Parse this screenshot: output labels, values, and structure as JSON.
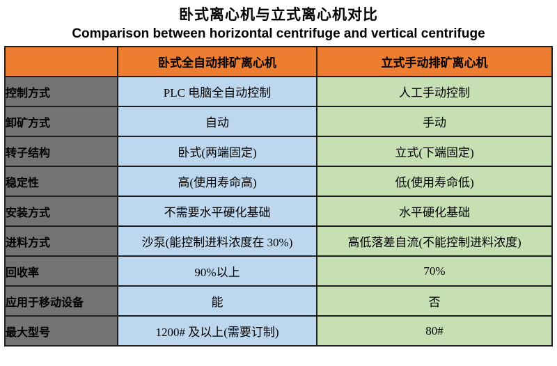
{
  "title": "卧式离心机与立式离心机对比",
  "subtitle": "Comparison between horizontal centrifuge and vertical centrifuge",
  "colors": {
    "header_bg": "#ED7D31",
    "label_column_bg": "#737373",
    "horizontal_column_bg": "#BDD7EE",
    "vertical_column_bg": "#C6E0B4",
    "border": "#1E1E1E"
  },
  "table": {
    "columns": {
      "corner": "",
      "horizontal": "卧式全自动排矿离心机",
      "vertical": "立式手动排矿离心机"
    },
    "rows": [
      {
        "label": "控制方式",
        "horizontal": "PLC 电脑全自动控制",
        "vertical": "人工手动控制"
      },
      {
        "label": "卸矿方式",
        "horizontal": "自动",
        "vertical": "手动"
      },
      {
        "label": "转子结构",
        "horizontal": "卧式(两端固定)",
        "vertical": "立式(下端固定)"
      },
      {
        "label": "稳定性",
        "horizontal": "高(使用寿命高)",
        "vertical": "低(使用寿命低)"
      },
      {
        "label": "安装方式",
        "horizontal": "不需要水平硬化基础",
        "vertical": "水平硬化基础"
      },
      {
        "label": "进料方式",
        "horizontal": "沙泵(能控制进料浓度在 30%)",
        "vertical": "高低落差自流(不能控制进料浓度)"
      },
      {
        "label": "回收率",
        "horizontal": "90%以上",
        "vertical": "70%"
      },
      {
        "label": "应用于移动设备",
        "horizontal": "能",
        "vertical": "否"
      },
      {
        "label": "最大型号",
        "horizontal": "1200# 及以上(需要订制)",
        "vertical": "80#"
      }
    ]
  }
}
